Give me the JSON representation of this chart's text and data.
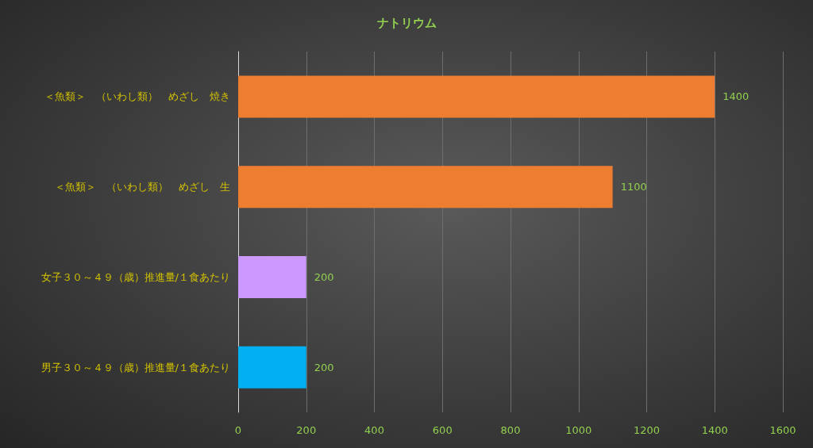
{
  "chart_data": {
    "type": "bar",
    "title": "ナトリウム",
    "orientation": "horizontal",
    "categories": [
      "＜魚類＞　（いわし類）　めざし　焼き",
      "＜魚類＞　（いわし類）　めざし　生",
      "女子３０～４９（歳）推進量/１食あたり",
      "男子３０～４９（歳）推進量/１食あたり"
    ],
    "values": [
      1400,
      1100,
      200,
      200
    ],
    "colors": [
      "#ed7d31",
      "#ed7d31",
      "#cc99ff",
      "#00b0f0"
    ],
    "xlim": [
      0,
      1600
    ],
    "xticks": [
      0,
      200,
      400,
      600,
      800,
      1000,
      1200,
      1400,
      1600
    ],
    "grid": "x",
    "data_labels": true
  }
}
